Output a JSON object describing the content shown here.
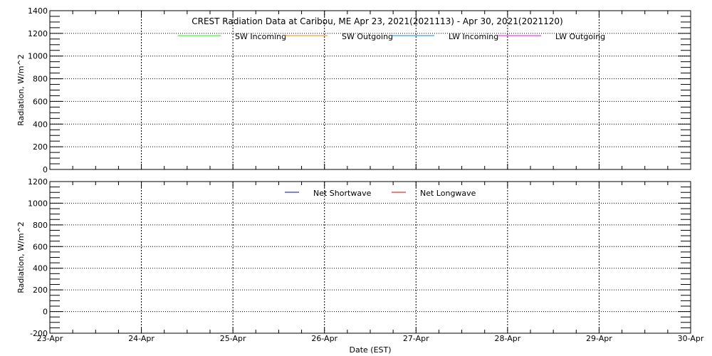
{
  "chart_data": [
    {
      "type": "line",
      "title": "CREST Radiation Data at Caribou, ME   Apr 23, 2021(2021113) - Apr 30, 2021(2021120)",
      "xlabel": "",
      "ylabel": "Radiation, W/m^2",
      "ylim": [
        0,
        1400
      ],
      "yticks": [
        0,
        200,
        400,
        600,
        800,
        1000,
        1200,
        1400
      ],
      "xticks": [
        "23-Apr",
        "24-Apr",
        "25-Apr",
        "26-Apr",
        "27-Apr",
        "28-Apr",
        "29-Apr",
        "30-Apr"
      ],
      "grid": true,
      "legend_placement": "top-center",
      "series": [
        {
          "name": "SW Incoming",
          "color": "#00ff00",
          "values": []
        },
        {
          "name": "SW Outgoing",
          "color": "#ff7f00",
          "values": []
        },
        {
          "name": "LW Incoming",
          "color": "#0080ff",
          "values": []
        },
        {
          "name": "LW Outgoing",
          "color": "#ff00ff",
          "values": []
        }
      ]
    },
    {
      "type": "line",
      "xlabel": "Date (EST)",
      "ylabel": "Radiation, W/m^2",
      "ylim": [
        -200,
        1200
      ],
      "yticks": [
        -200,
        0,
        200,
        400,
        600,
        800,
        1000,
        1200
      ],
      "xticks": [
        "23-Apr",
        "24-Apr",
        "25-Apr",
        "26-Apr",
        "27-Apr",
        "28-Apr",
        "29-Apr",
        "30-Apr"
      ],
      "grid": true,
      "legend_placement": "top-center",
      "series": [
        {
          "name": "Net Shortwave",
          "color": "#0000cc",
          "values": []
        },
        {
          "name": "Net Longwave",
          "color": "#dd0000",
          "values": []
        }
      ]
    }
  ]
}
